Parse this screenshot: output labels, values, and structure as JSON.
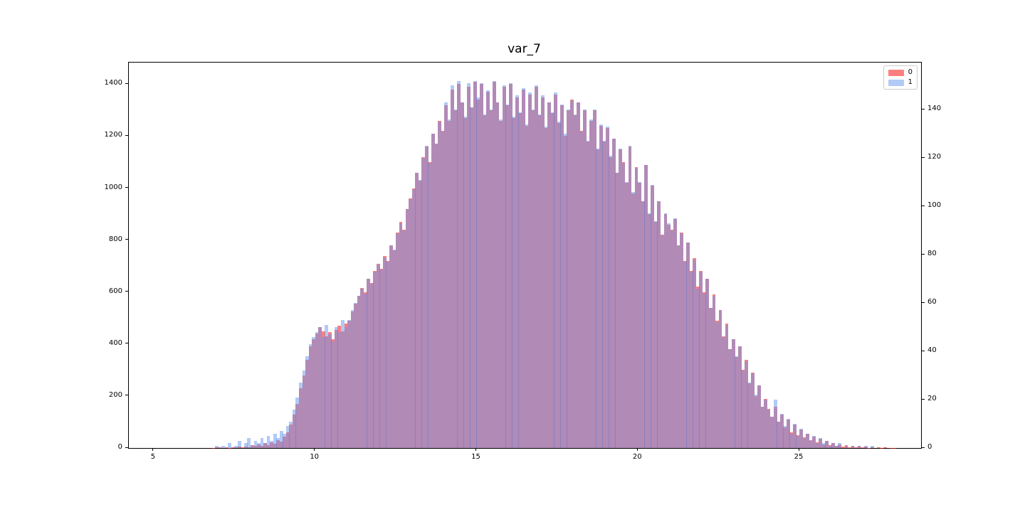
{
  "figure": {
    "background": "#ffffff",
    "axis_color": "#000000"
  },
  "chart_data": {
    "type": "bar",
    "subtype": "overlaid-histograms-twin-axes",
    "title": "var_7",
    "grid": false,
    "legend_position": "upper-right",
    "xlim": [
      4.23,
      28.77
    ],
    "x_ticks": [
      5,
      10,
      15,
      20,
      25
    ],
    "left_axis": {
      "ticks": [
        0,
        200,
        400,
        600,
        800,
        1000,
        1200,
        1400
      ],
      "lim": [
        0,
        1483
      ]
    },
    "right_axis": {
      "ticks": [
        0,
        20,
        40,
        60,
        80,
        100,
        120,
        140
      ],
      "lim": [
        0,
        159.5
      ]
    },
    "bin_start": 6.8,
    "bin_width": 0.1,
    "overlap_color": "#b18ab6",
    "series": [
      {
        "name": "0",
        "axis": "left",
        "color_hex": "#ff0000",
        "alpha": 0.5,
        "fill_rgba": "rgba(255,0,0,0.5)",
        "values": [
          1,
          2,
          2,
          0,
          3,
          1,
          4,
          2,
          5,
          3,
          6,
          4,
          10,
          7,
          14,
          9,
          18,
          12,
          22,
          16,
          30,
          24,
          45,
          60,
          90,
          130,
          170,
          230,
          280,
          340,
          390,
          420,
          440,
          465,
          450,
          430,
          445,
          420,
          455,
          470,
          450,
          480,
          490,
          525,
          555,
          585,
          615,
          600,
          650,
          635,
          680,
          710,
          690,
          740,
          720,
          780,
          760,
          830,
          870,
          840,
          920,
          960,
          1000,
          1060,
          1030,
          1120,
          1160,
          1100,
          1210,
          1170,
          1260,
          1220,
          1320,
          1260,
          1380,
          1300,
          1400,
          1330,
          1270,
          1390,
          1310,
          1410,
          1340,
          1400,
          1280,
          1370,
          1300,
          1410,
          1330,
          1260,
          1390,
          1320,
          1400,
          1270,
          1350,
          1290,
          1380,
          1240,
          1360,
          1300,
          1390,
          1280,
          1350,
          1230,
          1330,
          1290,
          1360,
          1250,
          1320,
          1200,
          1300,
          1340,
          1280,
          1330,
          1220,
          1300,
          1180,
          1260,
          1300,
          1150,
          1240,
          1180,
          1230,
          1120,
          1190,
          1060,
          1150,
          1100,
          1020,
          1160,
          980,
          1080,
          1020,
          950,
          1090,
          900,
          1010,
          870,
          950,
          820,
          900,
          860,
          840,
          880,
          780,
          830,
          720,
          790,
          680,
          730,
          620,
          680,
          600,
          650,
          540,
          590,
          490,
          530,
          430,
          480,
          380,
          420,
          350,
          390,
          300,
          340,
          250,
          290,
          200,
          240,
          160,
          190,
          150,
          120,
          160,
          100,
          130,
          80,
          110,
          60,
          90,
          50,
          70,
          40,
          55,
          30,
          45,
          22,
          35,
          15,
          28,
          10,
          20,
          8,
          15,
          5,
          12,
          4,
          9,
          3,
          7,
          2,
          5,
          1,
          4,
          0,
          3,
          1,
          2,
          0,
          1,
          1
        ]
      },
      {
        "name": "1",
        "axis": "right",
        "color_hex": "#6495ed",
        "alpha": 0.5,
        "fill_rgba": "rgba(100,149,237,0.5)",
        "values": [
          0,
          1,
          0,
          1,
          0,
          2,
          0,
          1,
          3,
          0,
          2,
          4,
          1,
          3,
          2,
          4,
          2,
          5,
          3,
          6,
          4,
          7,
          6,
          9,
          11,
          16,
          21,
          27,
          32,
          38,
          43,
          46,
          48,
          50,
          46,
          51,
          47,
          44,
          50,
          48,
          53,
          50,
          53,
          57,
          60,
          63,
          66,
          64,
          70,
          68,
          73,
          76,
          74,
          79,
          77,
          84,
          82,
          89,
          93,
          90,
          99,
          103,
          107,
          114,
          111,
          120,
          125,
          118,
          130,
          126,
          135,
          131,
          143,
          136,
          150,
          140,
          152,
          143,
          137,
          151,
          141,
          152,
          145,
          151,
          138,
          148,
          140,
          152,
          143,
          136,
          150,
          142,
          151,
          137,
          146,
          139,
          149,
          134,
          147,
          140,
          150,
          138,
          146,
          133,
          143,
          139,
          147,
          135,
          142,
          130,
          140,
          144,
          138,
          143,
          131,
          140,
          127,
          136,
          140,
          124,
          134,
          127,
          133,
          121,
          128,
          114,
          124,
          118,
          110,
          125,
          106,
          116,
          110,
          102,
          117,
          97,
          109,
          94,
          102,
          88,
          97,
          93,
          90,
          95,
          84,
          89,
          77,
          85,
          73,
          78,
          66,
          73,
          64,
          70,
          58,
          63,
          52,
          57,
          46,
          51,
          41,
          45,
          38,
          42,
          32,
          36,
          27,
          31,
          22,
          26,
          17,
          20,
          16,
          13,
          20,
          11,
          14,
          9,
          12,
          6,
          10,
          5,
          8,
          4,
          6,
          3,
          5,
          2,
          4,
          2,
          3,
          1,
          2,
          1,
          2,
          0,
          1,
          0,
          1,
          0,
          1,
          0,
          1,
          0,
          1,
          0,
          0,
          0,
          0,
          0,
          0,
          0
        ]
      }
    ]
  }
}
